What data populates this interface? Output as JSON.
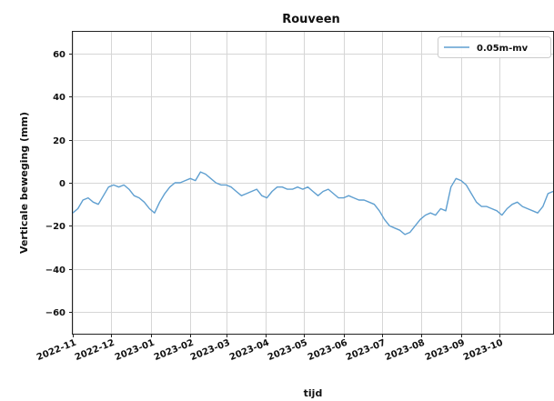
{
  "chart_data": {
    "type": "line",
    "title": "Rouveen",
    "xlabel": "tijd",
    "ylabel": "Verticale beweging (mm)",
    "x_tick_labels": [
      "2022-11",
      "2022-12",
      "2023-01",
      "2023-02",
      "2023-03",
      "2023-04",
      "2023-05",
      "2023-06",
      "2023-07",
      "2023-08",
      "2023-09",
      "2023-10"
    ],
    "y_ticks": [
      60,
      40,
      20,
      0,
      -20,
      -40,
      -60
    ],
    "ylim": [
      -70,
      70
    ],
    "xlim": [
      "2022-11-01",
      "2023-11-12"
    ],
    "grid": true,
    "legend_position": "top-right",
    "series": [
      {
        "name": "0.05m-mv",
        "color": "#5f9fd0",
        "x": [
          "2022-11-01",
          "2022-11-05",
          "2022-11-09",
          "2022-11-13",
          "2022-11-17",
          "2022-11-21",
          "2022-11-25",
          "2022-11-29",
          "2022-12-03",
          "2022-12-07",
          "2022-12-11",
          "2022-12-15",
          "2022-12-19",
          "2022-12-23",
          "2022-12-27",
          "2022-12-31",
          "2023-01-04",
          "2023-01-08",
          "2023-01-12",
          "2023-01-16",
          "2023-01-20",
          "2023-01-24",
          "2023-01-28",
          "2023-02-01",
          "2023-02-05",
          "2023-02-09",
          "2023-02-13",
          "2023-02-17",
          "2023-02-21",
          "2023-02-25",
          "2023-03-01",
          "2023-03-05",
          "2023-03-09",
          "2023-03-13",
          "2023-03-17",
          "2023-03-21",
          "2023-03-25",
          "2023-03-29",
          "2023-04-02",
          "2023-04-06",
          "2023-04-10",
          "2023-04-14",
          "2023-04-18",
          "2023-04-22",
          "2023-04-26",
          "2023-04-30",
          "2023-05-04",
          "2023-05-08",
          "2023-05-12",
          "2023-05-16",
          "2023-05-20",
          "2023-05-24",
          "2023-05-28",
          "2023-06-01",
          "2023-06-05",
          "2023-06-09",
          "2023-06-13",
          "2023-06-17",
          "2023-06-21",
          "2023-06-25",
          "2023-06-29",
          "2023-07-03",
          "2023-07-07",
          "2023-07-11",
          "2023-07-15",
          "2023-07-19",
          "2023-07-23",
          "2023-07-27",
          "2023-07-31",
          "2023-08-04",
          "2023-08-08",
          "2023-08-12",
          "2023-08-16",
          "2023-08-20",
          "2023-08-24",
          "2023-08-28",
          "2023-09-01",
          "2023-09-05",
          "2023-09-09",
          "2023-09-13",
          "2023-09-17",
          "2023-09-21",
          "2023-09-25",
          "2023-09-29",
          "2023-10-03",
          "2023-10-07",
          "2023-10-11",
          "2023-10-15",
          "2023-10-19",
          "2023-10-23",
          "2023-10-27",
          "2023-10-31",
          "2023-11-04",
          "2023-11-08",
          "2023-11-12"
        ],
        "values": [
          -14,
          -12,
          -8,
          -7,
          -9,
          -10,
          -6,
          -2,
          -1,
          -2,
          -1,
          -3,
          -6,
          -7,
          -9,
          -12,
          -14,
          -9,
          -5,
          -2,
          0,
          0,
          1,
          2,
          1,
          5,
          4,
          2,
          0,
          -1,
          -1,
          -2,
          -4,
          -6,
          -5,
          -4,
          -3,
          -6,
          -7,
          -4,
          -2,
          -2,
          -3,
          -3,
          -2,
          -3,
          -2,
          -4,
          -6,
          -4,
          -3,
          -5,
          -7,
          -7,
          -6,
          -7,
          -8,
          -8,
          -9,
          -10,
          -13,
          -17,
          -20,
          -21,
          -22,
          -24,
          -23,
          -20,
          -17,
          -15,
          -14,
          -15,
          -12,
          -13,
          -2,
          2,
          1,
          -1,
          -5,
          -9,
          -11,
          -11,
          -12,
          -13,
          -15,
          -12,
          -10,
          -9,
          -11,
          -12,
          -13,
          -14,
          -11,
          -5,
          -4
        ]
      }
    ]
  }
}
